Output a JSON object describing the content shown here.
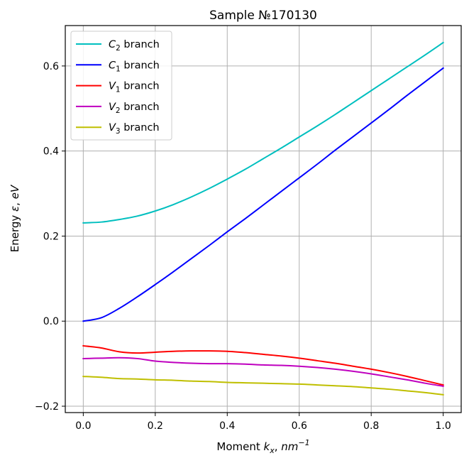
{
  "chart_data": {
    "type": "line",
    "title": "Sample №170130",
    "xlabel": "Moment k_x, nm^-1",
    "ylabel": "Energy ε, eV",
    "xlim": [
      -0.05,
      1.05
    ],
    "ylim": [
      -0.215,
      0.695
    ],
    "xticks": [
      0.0,
      0.2,
      0.4,
      0.6,
      0.8,
      1.0
    ],
    "xtick_labels": [
      "0.0",
      "0.2",
      "0.4",
      "0.6",
      "0.8",
      "1.0"
    ],
    "yticks": [
      -0.2,
      0.0,
      0.2,
      0.4,
      0.6
    ],
    "ytick_labels": [
      "−0.2",
      "0.0",
      "0.2",
      "0.4",
      "0.6"
    ],
    "grid": true,
    "legend_position": "upper-left",
    "x": [
      0.0,
      0.05,
      0.1,
      0.15,
      0.2,
      0.25,
      0.3,
      0.35,
      0.4,
      0.45,
      0.5,
      0.55,
      0.6,
      0.65,
      0.7,
      0.75,
      0.8,
      0.85,
      0.9,
      0.95,
      1.0
    ],
    "series": [
      {
        "name": "C2 branch",
        "color": "#00bfbf",
        "values": [
          0.231,
          0.233,
          0.239,
          0.247,
          0.259,
          0.274,
          0.292,
          0.312,
          0.334,
          0.357,
          0.382,
          0.407,
          0.433,
          0.459,
          0.486,
          0.514,
          0.542,
          0.57,
          0.598,
          0.626,
          0.655
        ]
      },
      {
        "name": "C1 branch",
        "color": "#0000ff",
        "values": [
          0.0,
          0.008,
          0.03,
          0.057,
          0.086,
          0.116,
          0.147,
          0.178,
          0.21,
          0.241,
          0.273,
          0.305,
          0.337,
          0.369,
          0.402,
          0.434,
          0.466,
          0.498,
          0.531,
          0.563,
          0.595
        ]
      },
      {
        "name": "V1 branch",
        "color": "#ff0000",
        "values": [
          -0.058,
          -0.063,
          -0.072,
          -0.075,
          -0.073,
          -0.071,
          -0.07,
          -0.07,
          -0.071,
          -0.074,
          -0.078,
          -0.082,
          -0.087,
          -0.093,
          -0.099,
          -0.106,
          -0.113,
          -0.121,
          -0.13,
          -0.14,
          -0.15
        ]
      },
      {
        "name": "V2 branch",
        "color": "#bf00bf",
        "values": [
          -0.088,
          -0.087,
          -0.086,
          -0.088,
          -0.094,
          -0.097,
          -0.099,
          -0.1,
          -0.1,
          -0.101,
          -0.103,
          -0.104,
          -0.106,
          -0.109,
          -0.113,
          -0.118,
          -0.124,
          -0.131,
          -0.138,
          -0.146,
          -0.153
        ]
      },
      {
        "name": "V3 branch",
        "color": "#bfbf00",
        "values": [
          -0.13,
          -0.132,
          -0.135,
          -0.136,
          -0.138,
          -0.139,
          -0.141,
          -0.142,
          -0.144,
          -0.145,
          -0.146,
          -0.147,
          -0.148,
          -0.15,
          -0.152,
          -0.154,
          -0.157,
          -0.16,
          -0.164,
          -0.168,
          -0.173
        ]
      }
    ]
  },
  "legend": {
    "items": [
      {
        "sym": "C",
        "sub": "2",
        "label": " branch"
      },
      {
        "sym": "C",
        "sub": "1",
        "label": " branch"
      },
      {
        "sym": "V",
        "sub": "1",
        "label": " branch"
      },
      {
        "sym": "V",
        "sub": "2",
        "label": " branch"
      },
      {
        "sym": "V",
        "sub": "3",
        "label": " branch"
      }
    ]
  },
  "axis_text": {
    "xlabel_prefix": "Moment ",
    "xlabel_sym": "k",
    "xlabel_sub": "x",
    "xlabel_sep": ",  ",
    "xlabel_unit": "nm",
    "xlabel_sup": "−1",
    "ylabel_prefix": "Energy ",
    "ylabel_sym": "ε",
    "ylabel_sep": ",  ",
    "ylabel_unit": "eV"
  }
}
